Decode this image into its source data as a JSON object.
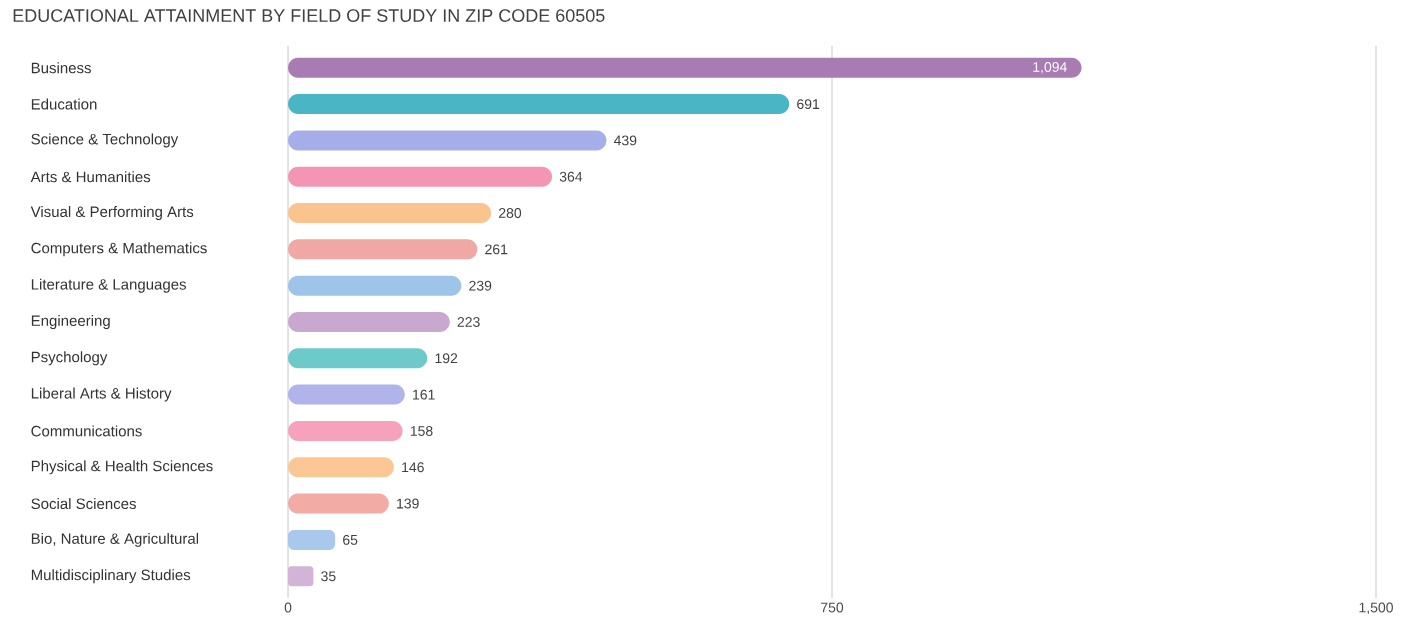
{
  "chart_data": {
    "type": "bar",
    "orientation": "horizontal",
    "title": "EDUCATIONAL ATTAINMENT BY FIELD OF STUDY IN ZIP CODE 60505",
    "categories": [
      "Business",
      "Education",
      "Science & Technology",
      "Arts & Humanities",
      "Visual & Performing Arts",
      "Computers & Mathematics",
      "Literature & Languages",
      "Engineering",
      "Psychology",
      "Liberal Arts & History",
      "Communications",
      "Physical & Health Sciences",
      "Social Sciences",
      "Bio, Nature & Agricultural",
      "Multidisciplinary Studies"
    ],
    "values": [
      1094,
      691,
      439,
      364,
      280,
      261,
      239,
      223,
      192,
      161,
      158,
      146,
      139,
      65,
      35
    ],
    "value_labels": [
      "1,094",
      "691",
      "439",
      "364",
      "280",
      "261",
      "239",
      "223",
      "192",
      "161",
      "158",
      "146",
      "139",
      "65",
      "35"
    ],
    "colors": [
      "#a87cb3",
      "#4ab5c4",
      "#a5aee8",
      "#f595b4",
      "#fbc48e",
      "#f0a8a4",
      "#9ec4ea",
      "#c9a8cf",
      "#6ec9cb",
      "#b0b4ea",
      "#f7a2bd",
      "#fbc895",
      "#f2aba5",
      "#a8c8ec",
      "#d2b4d8"
    ],
    "xlim": [
      0,
      1500
    ],
    "xticks": [
      0,
      750,
      {
        "value": 1500,
        "label": "1,500"
      }
    ],
    "grid": "x"
  }
}
